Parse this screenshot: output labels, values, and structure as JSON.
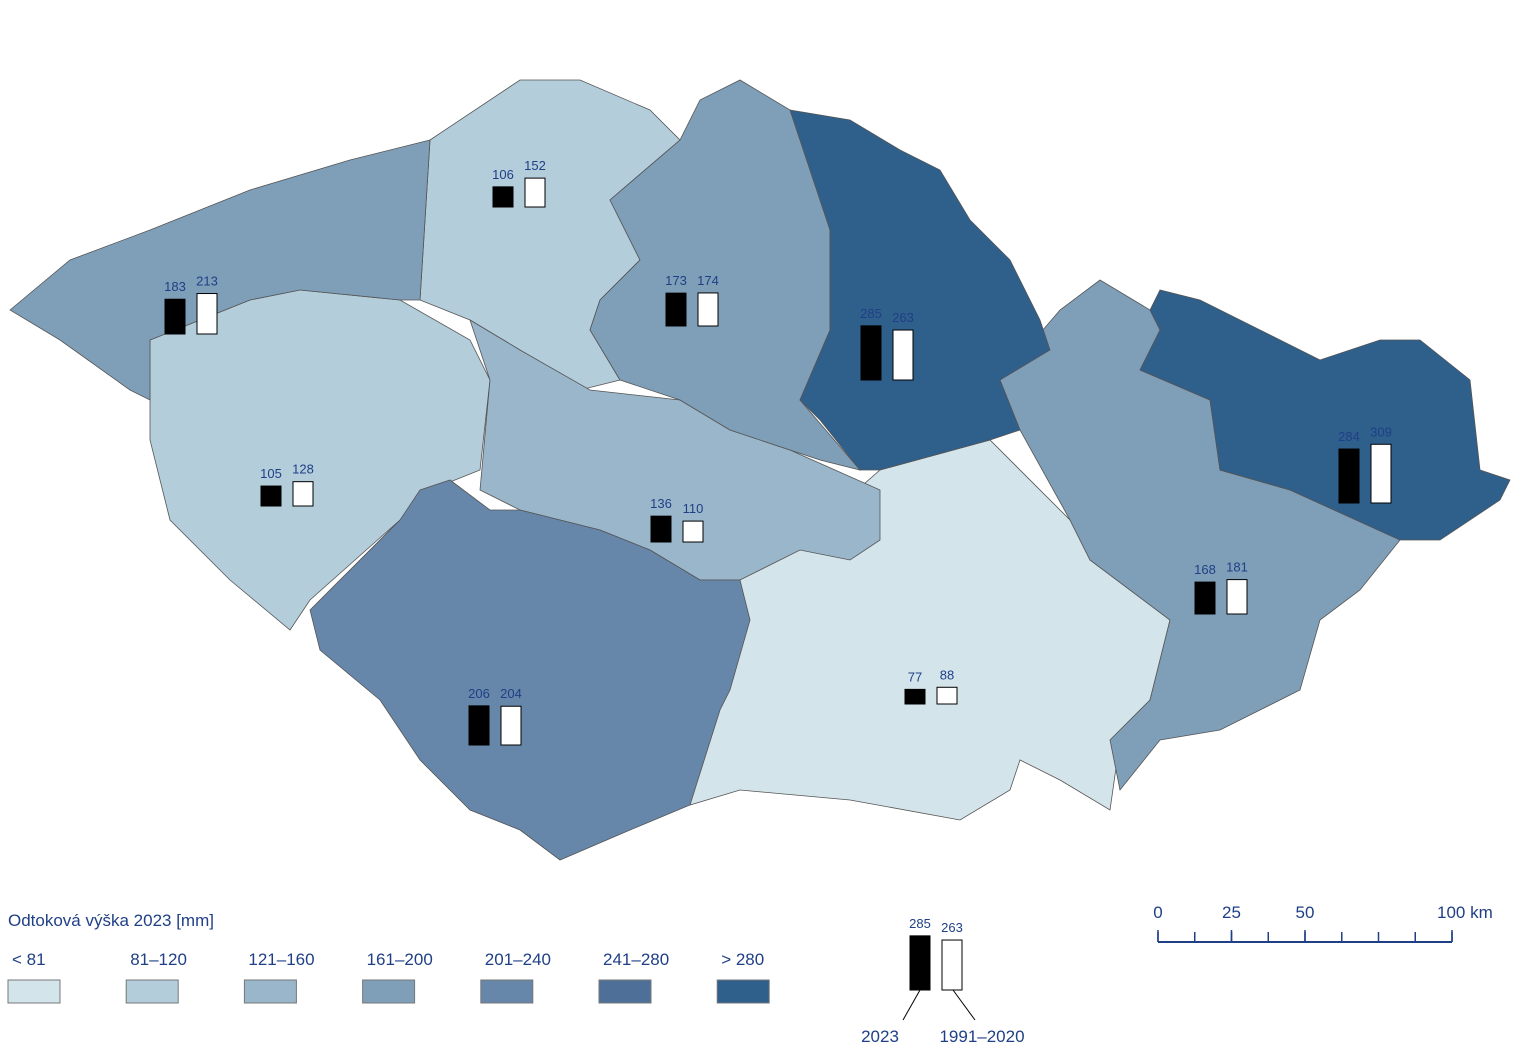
{
  "legend": {
    "title": "Odtoková výška 2023 [mm]",
    "classes": [
      {
        "label": "< 81",
        "color": "#d3e4ea"
      },
      {
        "label": "81–120",
        "color": "#b4cddb"
      },
      {
        "label": "121–160",
        "color": "#9ab6cb"
      },
      {
        "label": "161–200",
        "color": "#7f9fb9"
      },
      {
        "label": "201–240",
        "color": "#6687a9"
      },
      {
        "label": "241–280",
        "color": "#4e7098"
      },
      {
        "label": "> 280",
        "color": "#2f5f8b"
      }
    ]
  },
  "regions": [
    {
      "values": [
        106,
        152
      ]
    },
    {
      "values": [
        183,
        213
      ]
    },
    {
      "values": [
        173,
        174
      ]
    },
    {
      "values": [
        285,
        263
      ]
    },
    {
      "values": [
        284,
        309
      ]
    },
    {
      "values": [
        105,
        128
      ]
    },
    {
      "values": [
        136,
        110
      ]
    },
    {
      "values": [
        168,
        181
      ]
    },
    {
      "values": [
        206,
        204
      ]
    },
    {
      "values": [
        77,
        88
      ]
    }
  ],
  "bar_key": {
    "values": [
      285,
      263
    ],
    "labels": [
      "2023",
      "1991–2020"
    ]
  },
  "scale": {
    "xlim": [
      0,
      100
    ],
    "ticks": [
      0,
      25,
      50,
      {
        "value": 100,
        "label": "100 km"
      }
    ]
  }
}
